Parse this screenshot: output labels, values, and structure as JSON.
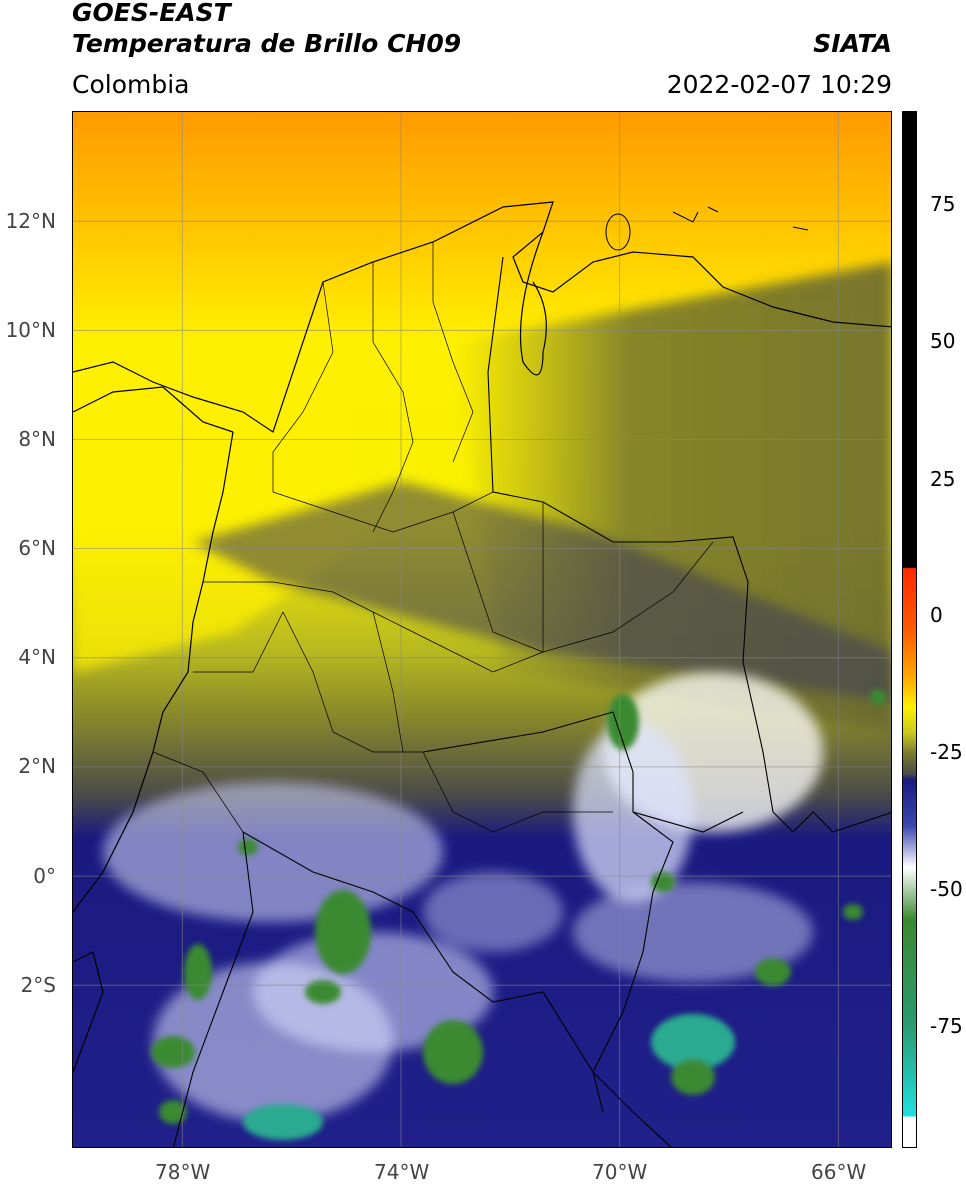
{
  "header": {
    "satellite": "GOES-EAST",
    "product": "Temperatura de Brillo CH09",
    "region": "Colombia",
    "agency": "SIATA",
    "datetime": "2022-02-07 10:29"
  },
  "map": {
    "lat_ticks": [
      "12°N",
      "10°N",
      "8°N",
      "6°N",
      "4°N",
      "2°N",
      "0°",
      "2°S"
    ],
    "lon_ticks": [
      "78°W",
      "74°W",
      "70°W",
      "66°W"
    ],
    "extent": {
      "lon_min": -80,
      "lon_max": -65,
      "lat_min": -5,
      "lat_max": 14
    },
    "gridlines": true
  },
  "colorbar": {
    "ticks": [
      "75",
      "50",
      "25",
      "0",
      "-25",
      "-50",
      "-75"
    ],
    "range": [
      -95,
      90
    ],
    "colors": {
      "black": "#000000",
      "red": "#ff2a00",
      "orange": "#ff9a00",
      "yellow": "#fff000",
      "olive": "#8a8a2a",
      "gray": "#4a4a4a",
      "navy": "#1a1a80",
      "blue": "#3a48b0",
      "white": "#ffffff",
      "green": "#3a8a30",
      "cyan": "#20e0e0"
    }
  }
}
